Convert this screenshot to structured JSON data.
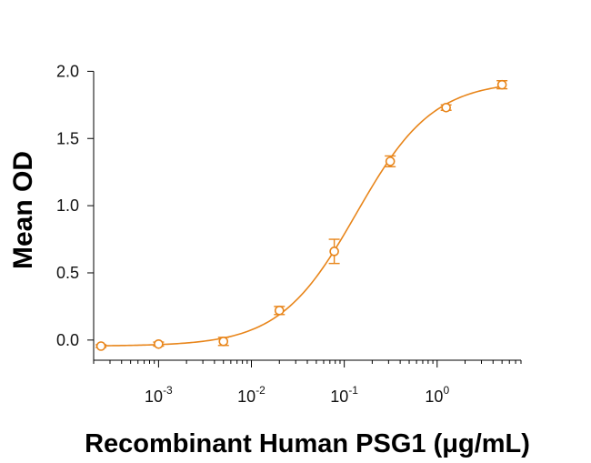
{
  "chart_data": {
    "type": "scatter",
    "title": "",
    "xlabel": "Recombinant Human PSG1 (μg/mL)",
    "ylabel": "Mean OD",
    "x_scale": "log",
    "xlim": [
      0.0002,
      8
    ],
    "ylim": [
      -0.15,
      2.05
    ],
    "x_ticks": [
      {
        "value": 0.001,
        "base": "10",
        "exp": "-3"
      },
      {
        "value": 0.01,
        "base": "10",
        "exp": "-2"
      },
      {
        "value": 0.1,
        "base": "10",
        "exp": "-1"
      },
      {
        "value": 1,
        "base": "10",
        "exp": "0"
      }
    ],
    "y_ticks": [
      {
        "value": 0.0,
        "label": "0.0"
      },
      {
        "value": 0.5,
        "label": "0.5"
      },
      {
        "value": 1.0,
        "label": "1.0"
      },
      {
        "value": 1.5,
        "label": "1.5"
      },
      {
        "value": 2.0,
        "label": "2.0"
      }
    ],
    "grid": false,
    "color": "#E8851A",
    "series": [
      {
        "points": [
          {
            "x": 0.00024,
            "y": -0.045,
            "err": 0.01
          },
          {
            "x": 0.001,
            "y": -0.03,
            "err": 0.015
          },
          {
            "x": 0.005,
            "y": -0.01,
            "err": 0.03
          },
          {
            "x": 0.02,
            "y": 0.22,
            "err": 0.03
          },
          {
            "x": 0.078,
            "y": 0.66,
            "err": 0.09
          },
          {
            "x": 0.3125,
            "y": 1.33,
            "err": 0.04
          },
          {
            "x": 1.25,
            "y": 1.73,
            "err": 0.02
          },
          {
            "x": 5.0,
            "y": 1.9,
            "err": 0.03
          }
        ],
        "fit": {
          "bottom": -0.045,
          "top": 1.93,
          "ec50": 0.135,
          "hill": 1.05
        }
      }
    ]
  }
}
